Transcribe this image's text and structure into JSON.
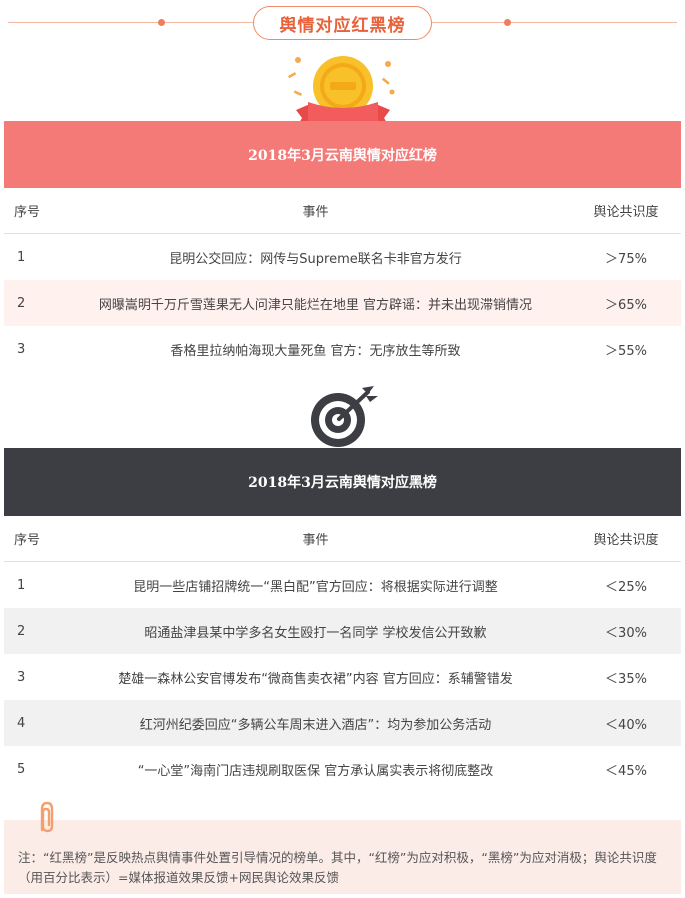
{
  "page": {
    "title": "舆情对应红黑榜"
  },
  "icons": {
    "header_badge": "medal-coin-ribbon-icon",
    "target": "target-dart-icon",
    "note": "paperclip-icon"
  },
  "colors": {
    "accent": "#e8613a",
    "red_banner": "#f47a78",
    "black_banner": "#3c3e43",
    "red_row_alt": "#fff1ee",
    "black_row_alt": "#f1f1f1",
    "note_bg": "#fbece8"
  },
  "red_list": {
    "banner": "2018年3月云南舆情对应红榜",
    "headers": {
      "no": "序号",
      "event": "事件",
      "level": "舆论共识度"
    },
    "rows": [
      {
        "no": "1",
        "event": "昆明公交回应：网传与Supreme联名卡非官方发行",
        "level": "＞75%"
      },
      {
        "no": "2",
        "event": "网曝嵩明千万斤雪莲果无人问津只能烂在地里 官方辟谣：并未出现滞销情况",
        "level": "＞65%"
      },
      {
        "no": "3",
        "event": "香格里拉纳帕海现大量死鱼 官方：无序放生等所致",
        "level": "＞55%"
      }
    ]
  },
  "black_list": {
    "banner": "2018年3月云南舆情对应黑榜",
    "headers": {
      "no": "序号",
      "event": "事件",
      "level": "舆论共识度"
    },
    "rows": [
      {
        "no": "1",
        "event": "昆明一些店铺招牌统一“黑白配”官方回应：将根据实际进行调整",
        "level": "＜25%"
      },
      {
        "no": "2",
        "event": "昭通盐津县某中学多名女生殴打一名同学 学校发信公开致歉",
        "level": "＜30%"
      },
      {
        "no": "3",
        "event": "楚雄一森林公安官博发布“微商售卖衣裙”内容 官方回应：系辅警错发",
        "level": "＜35%"
      },
      {
        "no": "4",
        "event": "红河州纪委回应“多辆公车周末进入酒店”：均为参加公务活动",
        "level": "＜40%"
      },
      {
        "no": "5",
        "event": "“一心堂”海南门店违规刷取医保 官方承认属实表示将彻底整改",
        "level": "＜45%"
      }
    ]
  },
  "note": {
    "text": "注：“红黑榜”是反映热点舆情事件处置引导情况的榜单。其中，“红榜”为应对积极，“黑榜”为应对消极；舆论共识度（用百分比表示）=媒体报道效果反馈+网民舆论效果反馈"
  }
}
